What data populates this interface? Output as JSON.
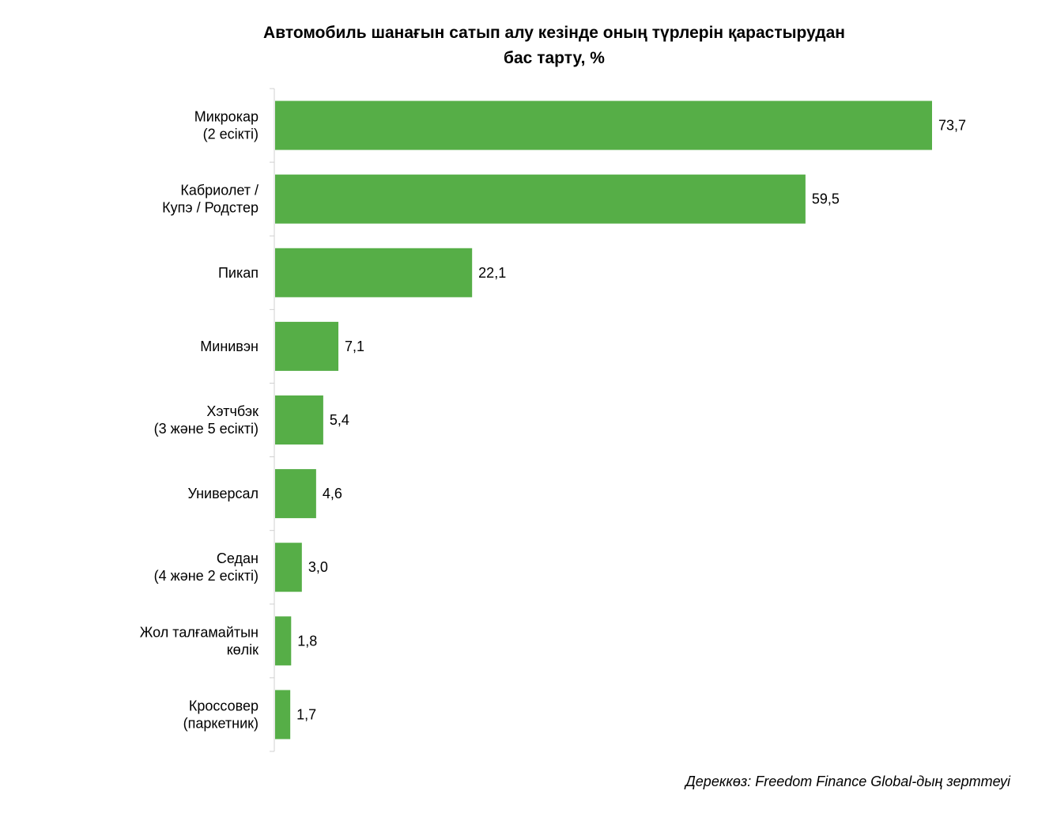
{
  "chart_data": {
    "type": "bar",
    "orientation": "horizontal",
    "title_line1": "Автомобиль шанағын сатып алу кезінде оның түрлерін қарастырудан",
    "title_line2": "бас тарту, %",
    "categories": [
      [
        "Микрокар",
        "(2 есікті)"
      ],
      [
        "Кабриолет /",
        "Купэ / Родстер"
      ],
      [
        "Пикап"
      ],
      [
        "Минивэн"
      ],
      [
        "Хэтчбэк",
        "(3 және 5 есікті)"
      ],
      [
        "Универсал"
      ],
      [
        "Седан",
        "(4 және 2 есікті)"
      ],
      [
        "Жол талғамайтын",
        "көлік"
      ],
      [
        "Кроссовер",
        "(паркетник)"
      ]
    ],
    "values": [
      73.7,
      59.5,
      22.1,
      7.1,
      5.4,
      4.6,
      3.0,
      1.8,
      1.7
    ],
    "value_labels": [
      "73,7",
      "59,5",
      "22,1",
      "7,1",
      "5,4",
      "4,6",
      "3,0",
      "1,8",
      "1,7"
    ],
    "bar_color": "#56ae47",
    "grid": false,
    "legend": "none"
  },
  "source": "Дереккөз: Freedom Finance Global-дың зерттеуі"
}
